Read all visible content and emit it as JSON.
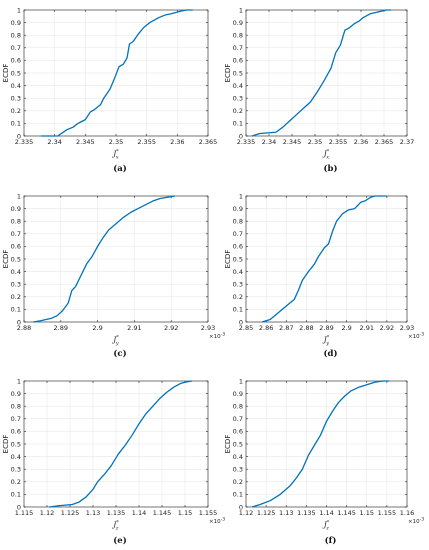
{
  "figure": {
    "series_color": "#0072BD"
  },
  "chart_data": [
    {
      "type": "line",
      "caption": "(a)",
      "ylabel": "ECDF",
      "xlabel": "J",
      "xlabel_sup": "*",
      "xlabel_sub": "x",
      "xlim": [
        2.335,
        2.365
      ],
      "ylim": [
        0,
        1
      ],
      "xticks": [
        "2.335",
        "2.34",
        "2.345",
        "2.35",
        "2.355",
        "2.36",
        "2.365"
      ],
      "yticks": [
        "0",
        "0.1",
        "0.2",
        "0.3",
        "0.4",
        "0.5",
        "0.6",
        "0.7",
        "0.8",
        "0.9",
        "1"
      ],
      "multiplier": "",
      "grid": true,
      "x": [
        2.3378,
        2.3405,
        2.342,
        2.343,
        2.3438,
        2.3442,
        2.345,
        2.3458,
        2.3465,
        2.3475,
        2.348,
        2.349,
        2.3497,
        2.3505,
        2.3512,
        2.3518,
        2.3522,
        2.3528,
        2.3535,
        2.3545,
        2.3555,
        2.357,
        2.358,
        2.359,
        2.3605,
        2.3615,
        2.3625
      ],
      "y": [
        0.0,
        0.0,
        0.05,
        0.07,
        0.1,
        0.11,
        0.13,
        0.19,
        0.21,
        0.25,
        0.3,
        0.37,
        0.45,
        0.55,
        0.57,
        0.62,
        0.73,
        0.75,
        0.8,
        0.86,
        0.9,
        0.94,
        0.96,
        0.97,
        0.99,
        1.0,
        1.0
      ]
    },
    {
      "type": "line",
      "caption": "(b)",
      "ylabel": "ECDF",
      "xlabel": "J",
      "xlabel_sup": "*",
      "xlabel_sub": "x",
      "xlim": [
        2.335,
        2.37
      ],
      "ylim": [
        0,
        1
      ],
      "xticks": [
        "2.335",
        "2.34",
        "2.345",
        "2.35",
        "2.355",
        "2.36",
        "2.365",
        "2.37"
      ],
      "yticks": [
        "0",
        "0.1",
        "0.2",
        "0.3",
        "0.4",
        "0.5",
        "0.6",
        "0.7",
        "0.8",
        "0.9",
        "1"
      ],
      "multiplier": "",
      "grid": true,
      "x": [
        2.3363,
        2.338,
        2.3415,
        2.343,
        2.3445,
        2.346,
        2.3475,
        2.349,
        2.3505,
        2.352,
        2.3535,
        2.3545,
        2.3555,
        2.3565,
        2.3575,
        2.3585,
        2.3595,
        2.3605,
        2.362,
        2.3632,
        2.3655,
        2.3665
      ],
      "y": [
        0.0,
        0.02,
        0.03,
        0.07,
        0.12,
        0.17,
        0.22,
        0.27,
        0.35,
        0.44,
        0.54,
        0.66,
        0.72,
        0.84,
        0.86,
        0.89,
        0.91,
        0.94,
        0.97,
        0.98,
        1.0,
        1.0
      ]
    },
    {
      "type": "line",
      "caption": "(c)",
      "ylabel": "ECDF",
      "xlabel": "J",
      "xlabel_sup": "*",
      "xlabel_sub": "y",
      "xlim": [
        2.88,
        2.93
      ],
      "ylim": [
        0,
        1
      ],
      "xticks": [
        "2.88",
        "2.89",
        "2.9",
        "2.91",
        "2.92",
        "2.93"
      ],
      "yticks": [
        "0",
        "0.1",
        "0.2",
        "0.3",
        "0.4",
        "0.5",
        "0.6",
        "0.7",
        "0.8",
        "0.9",
        "1"
      ],
      "multiplier": "×10",
      "multiplier_exp": "-3",
      "grid": true,
      "x": [
        2.8825,
        2.8845,
        2.886,
        2.8875,
        2.889,
        2.8905,
        2.892,
        2.893,
        2.894,
        2.8955,
        2.897,
        2.8985,
        2.9,
        2.9015,
        2.903,
        2.905,
        2.907,
        2.909,
        2.911,
        2.913,
        2.915,
        2.917,
        2.919,
        2.921
      ],
      "y": [
        0.0,
        0.01,
        0.02,
        0.03,
        0.05,
        0.09,
        0.15,
        0.25,
        0.28,
        0.37,
        0.46,
        0.52,
        0.6,
        0.67,
        0.73,
        0.78,
        0.83,
        0.87,
        0.9,
        0.93,
        0.96,
        0.98,
        0.99,
        1.0
      ]
    },
    {
      "type": "line",
      "caption": "(d)",
      "ylabel": "ECDF",
      "xlabel": "J",
      "xlabel_sup": "*",
      "xlabel_sub": "y",
      "xlim": [
        2.85,
        2.93
      ],
      "ylim": [
        0,
        1
      ],
      "xticks": [
        "2.85",
        "2.86",
        "2.87",
        "2.88",
        "2.89",
        "2.9",
        "2.91",
        "2.92",
        "2.93"
      ],
      "yticks": [
        "0",
        "0.1",
        "0.2",
        "0.3",
        "0.4",
        "0.5",
        "0.6",
        "0.7",
        "0.8",
        "0.9",
        "1"
      ],
      "multiplier": "×10",
      "multiplier_exp": "-3",
      "grid": true,
      "x": [
        2.858,
        2.862,
        2.865,
        2.868,
        2.871,
        2.874,
        2.876,
        2.878,
        2.881,
        2.884,
        2.886,
        2.889,
        2.891,
        2.893,
        2.895,
        2.898,
        2.901,
        2.904,
        2.907,
        2.909,
        2.912,
        2.914,
        2.917,
        2.92
      ],
      "y": [
        0.0,
        0.02,
        0.06,
        0.1,
        0.14,
        0.18,
        0.25,
        0.33,
        0.4,
        0.46,
        0.52,
        0.59,
        0.62,
        0.72,
        0.8,
        0.86,
        0.89,
        0.9,
        0.95,
        0.96,
        0.99,
        1.0,
        1.0,
        1.0
      ]
    },
    {
      "type": "line",
      "caption": "(e)",
      "ylabel": "ECDF",
      "xlabel": "J",
      "xlabel_sup": "*",
      "xlabel_sub": "z",
      "xlim": [
        1.115,
        1.155
      ],
      "ylim": [
        0,
        1
      ],
      "xticks": [
        "1.115",
        "1.12",
        "1.125",
        "1.13",
        "1.135",
        "1.14",
        "1.145",
        "1.15",
        "1.155"
      ],
      "yticks": [
        "0",
        "0.1",
        "0.2",
        "0.3",
        "0.4",
        "0.5",
        "0.6",
        "0.7",
        "0.8",
        "0.9",
        "1"
      ],
      "multiplier": "×10",
      "multiplier_exp": "-3",
      "grid": true,
      "x": [
        1.1205,
        1.1225,
        1.1255,
        1.127,
        1.1285,
        1.13,
        1.131,
        1.1325,
        1.134,
        1.1355,
        1.137,
        1.1385,
        1.14,
        1.1415,
        1.143,
        1.1445,
        1.146,
        1.1475,
        1.149,
        1.15,
        1.1515
      ],
      "y": [
        0.0,
        0.01,
        0.02,
        0.04,
        0.08,
        0.14,
        0.2,
        0.26,
        0.33,
        0.42,
        0.49,
        0.57,
        0.66,
        0.74,
        0.8,
        0.86,
        0.91,
        0.95,
        0.98,
        0.99,
        1.0
      ]
    },
    {
      "type": "line",
      "caption": "(f)",
      "ylabel": "ECDF",
      "xlabel": "J",
      "xlabel_sup": "*",
      "xlabel_sub": "z",
      "xlim": [
        1.12,
        1.16
      ],
      "ylim": [
        0,
        1
      ],
      "xticks": [
        "1.12",
        "1.125",
        "1.13",
        "1.135",
        "1.14",
        "1.145",
        "1.15",
        "1.155",
        "1.16"
      ],
      "yticks": [
        "0",
        "0.1",
        "0.2",
        "0.3",
        "0.4",
        "0.5",
        "0.6",
        "0.7",
        "0.8",
        "0.9",
        "1"
      ],
      "multiplier": "×10",
      "multiplier_exp": "-3",
      "grid": true,
      "x": [
        1.1215,
        1.1235,
        1.126,
        1.1285,
        1.131,
        1.1325,
        1.134,
        1.1355,
        1.137,
        1.1385,
        1.14,
        1.1415,
        1.143,
        1.1445,
        1.146,
        1.148,
        1.15,
        1.152,
        1.154,
        1.1555
      ],
      "y": [
        0.0,
        0.02,
        0.05,
        0.1,
        0.17,
        0.23,
        0.3,
        0.41,
        0.49,
        0.57,
        0.68,
        0.76,
        0.83,
        0.88,
        0.92,
        0.95,
        0.97,
        0.99,
        1.0,
        1.0
      ]
    }
  ]
}
